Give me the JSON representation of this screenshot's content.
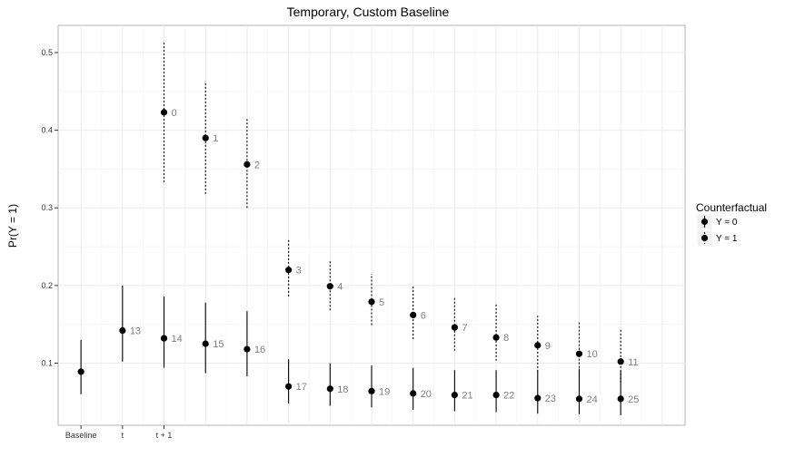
{
  "chart_data": {
    "type": "scatter",
    "title": "Temporary, Custom Baseline",
    "xlabel": "",
    "ylabel": "Pr(Y = 1)",
    "x_tick_labels": [
      "Baseline",
      "t",
      "t + 1"
    ],
    "y_ticks": [
      0.1,
      0.2,
      0.3,
      0.4,
      0.5
    ],
    "y_tick_labels": [
      "0.1",
      "0.2",
      "0.3",
      "0.4",
      "0.5"
    ],
    "ylim": [
      0.02,
      0.535
    ],
    "xlim": [
      0.45,
      15.55
    ],
    "grid": true,
    "legend": {
      "title": "Counterfactual",
      "position": "right",
      "entries": [
        "Y = 0",
        "Y = 1"
      ]
    },
    "series": [
      {
        "name": "Y = 0",
        "style": "solid",
        "points": [
          {
            "x": 1,
            "y": 0.089,
            "lo": 0.06,
            "hi": 0.13,
            "label": ""
          },
          {
            "x": 2,
            "y": 0.142,
            "lo": 0.102,
            "hi": 0.2,
            "label": "13"
          },
          {
            "x": 3,
            "y": 0.132,
            "lo": 0.094,
            "hi": 0.186,
            "label": "14"
          },
          {
            "x": 4,
            "y": 0.125,
            "lo": 0.087,
            "hi": 0.178,
            "label": "15"
          },
          {
            "x": 5,
            "y": 0.118,
            "lo": 0.083,
            "hi": 0.167,
            "label": "16"
          },
          {
            "x": 6,
            "y": 0.07,
            "lo": 0.048,
            "hi": 0.105,
            "label": "17"
          },
          {
            "x": 7,
            "y": 0.067,
            "lo": 0.045,
            "hi": 0.1,
            "label": "18"
          },
          {
            "x": 8,
            "y": 0.064,
            "lo": 0.043,
            "hi": 0.097,
            "label": "19"
          },
          {
            "x": 9,
            "y": 0.061,
            "lo": 0.04,
            "hi": 0.094,
            "label": "20"
          },
          {
            "x": 10,
            "y": 0.059,
            "lo": 0.038,
            "hi": 0.091,
            "label": "21"
          },
          {
            "x": 11,
            "y": 0.059,
            "lo": 0.037,
            "hi": 0.091,
            "label": "22"
          },
          {
            "x": 12,
            "y": 0.055,
            "lo": 0.035,
            "hi": 0.09,
            "label": "23"
          },
          {
            "x": 13,
            "y": 0.054,
            "lo": 0.034,
            "hi": 0.093,
            "label": "24"
          },
          {
            "x": 14,
            "y": 0.054,
            "lo": 0.033,
            "hi": 0.09,
            "label": "25"
          }
        ]
      },
      {
        "name": "Y = 1",
        "style": "dotted",
        "points": [
          {
            "x": 3,
            "y": 0.423,
            "lo": 0.333,
            "hi": 0.515,
            "label": "0"
          },
          {
            "x": 4,
            "y": 0.39,
            "lo": 0.318,
            "hi": 0.463,
            "label": "1"
          },
          {
            "x": 5,
            "y": 0.356,
            "lo": 0.3,
            "hi": 0.415,
            "label": "2"
          },
          {
            "x": 6,
            "y": 0.22,
            "lo": 0.186,
            "hi": 0.26,
            "label": "3"
          },
          {
            "x": 7,
            "y": 0.199,
            "lo": 0.168,
            "hi": 0.233,
            "label": "4"
          },
          {
            "x": 8,
            "y": 0.179,
            "lo": 0.149,
            "hi": 0.215,
            "label": "5"
          },
          {
            "x": 9,
            "y": 0.162,
            "lo": 0.131,
            "hi": 0.2,
            "label": "6"
          },
          {
            "x": 10,
            "y": 0.146,
            "lo": 0.116,
            "hi": 0.184,
            "label": "7"
          },
          {
            "x": 11,
            "y": 0.133,
            "lo": 0.103,
            "hi": 0.176,
            "label": "8"
          },
          {
            "x": 12,
            "y": 0.123,
            "lo": 0.089,
            "hi": 0.161,
            "label": "9"
          },
          {
            "x": 13,
            "y": 0.112,
            "lo": 0.08,
            "hi": 0.153,
            "label": "10"
          },
          {
            "x": 14,
            "y": 0.102,
            "lo": 0.075,
            "hi": 0.144,
            "label": "11"
          }
        ]
      }
    ]
  }
}
